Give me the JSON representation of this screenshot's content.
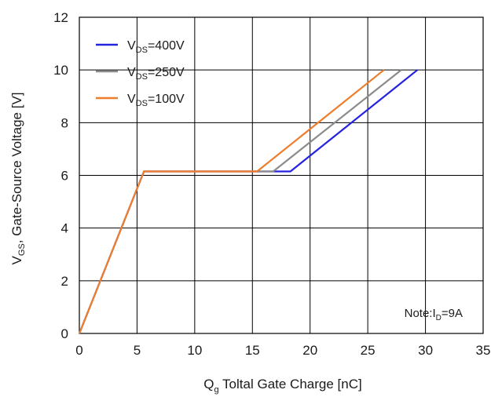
{
  "chart_data": {
    "type": "line",
    "title": "",
    "xlabel": {
      "main": "Q",
      "sub": "g",
      "rest": " Toltal Gate Charge [nC]"
    },
    "ylabel": {
      "main": "V",
      "sub": "GS",
      "rest": ", Gate-Source Voltage [V]"
    },
    "xlim": [
      0,
      35
    ],
    "ylim": [
      0,
      12
    ],
    "xticks": [
      "0",
      "5",
      "10",
      "15",
      "20",
      "25",
      "30",
      "35"
    ],
    "yticks": [
      "0",
      "2",
      "4",
      "6",
      "8",
      "10",
      "12"
    ],
    "grid": true,
    "legend_position": "top-left",
    "series": [
      {
        "name": {
          "main": "V",
          "sub": "DS",
          "rest": "=400V"
        },
        "color": "#2323e0",
        "points": [
          [
            0,
            0
          ],
          [
            5.6,
            6.15
          ],
          [
            18.3,
            6.15
          ],
          [
            29.3,
            10.0
          ]
        ]
      },
      {
        "name": {
          "main": "V",
          "sub": "DS",
          "rest": "=250V"
        },
        "color": "#8c8c8c",
        "points": [
          [
            0,
            0
          ],
          [
            5.6,
            6.15
          ],
          [
            16.8,
            6.15
          ],
          [
            27.9,
            10.0
          ]
        ]
      },
      {
        "name": {
          "main": "V",
          "sub": "DS",
          "rest": "=100V"
        },
        "color": "#ee7d2c",
        "points": [
          [
            0,
            0
          ],
          [
            5.6,
            6.15
          ],
          [
            15.4,
            6.15
          ],
          [
            26.4,
            10.0
          ]
        ]
      }
    ],
    "annotation": {
      "main": "Note:I",
      "sub": "D",
      "rest": "=9A"
    }
  }
}
